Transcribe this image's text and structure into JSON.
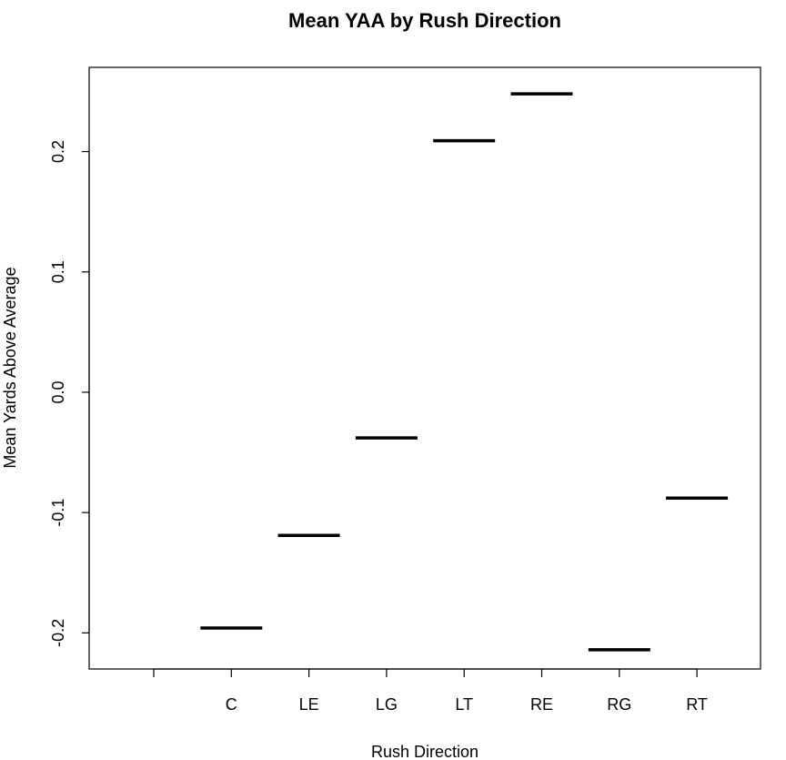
{
  "chart_data": {
    "type": "scatter",
    "title": "Mean YAA by Rush Direction",
    "xlabel": "Rush Direction",
    "ylabel": "Mean Yards Above Average",
    "categories": [
      "",
      "C",
      "LE",
      "LG",
      "LT",
      "RE",
      "RG",
      "RT"
    ],
    "values": [
      null,
      -0.196,
      -0.119,
      -0.038,
      0.209,
      0.248,
      -0.214,
      -0.088
    ],
    "ylim": [
      -0.23,
      0.27
    ],
    "yticks": [
      -0.2,
      -0.1,
      0.0,
      0.1,
      0.2
    ],
    "ytick_labels": [
      "-0.2",
      "-0.1",
      "0.0",
      "0.1",
      "0.2"
    ],
    "marker": "horizontal-segment",
    "grid": false,
    "legend": "none",
    "color": "#000000"
  }
}
